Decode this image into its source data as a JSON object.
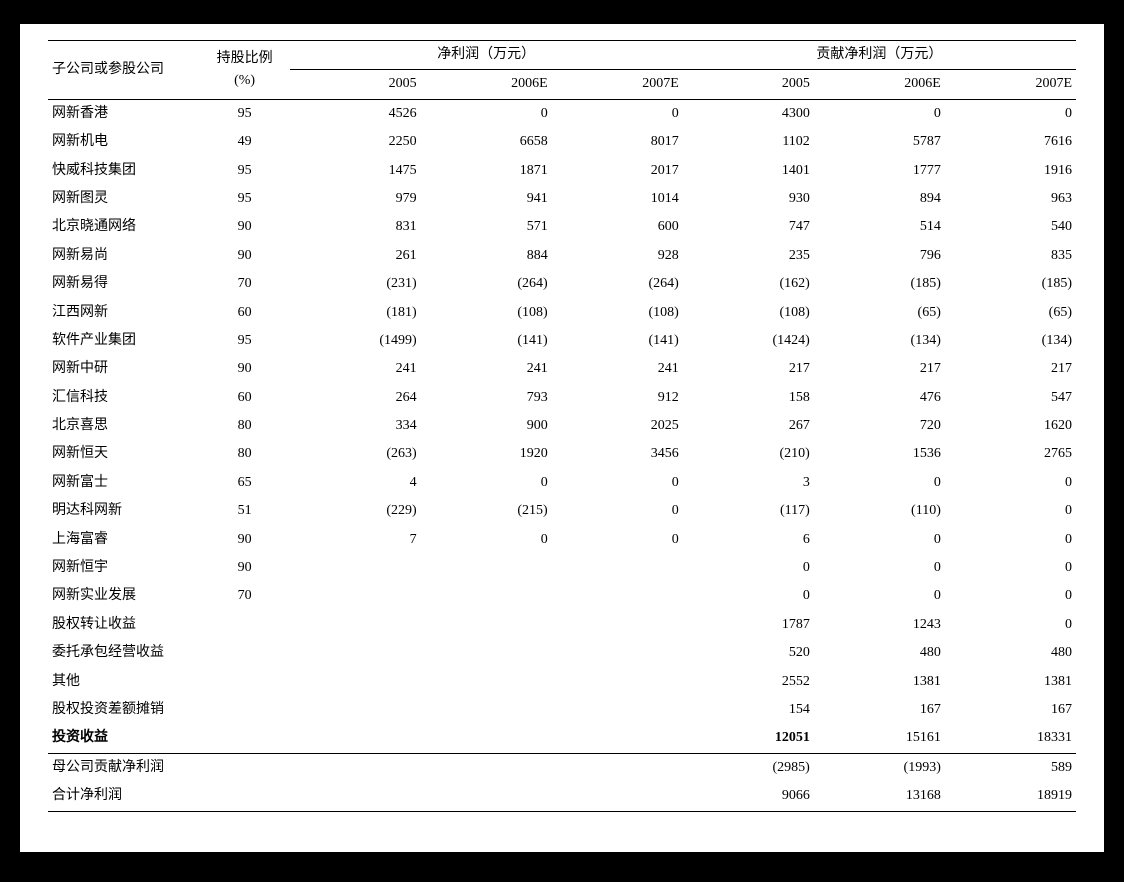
{
  "header": {
    "company_col": "子公司或参股公司",
    "share_col_line1": "持股比例",
    "share_col_line2": "(%)",
    "group1": "净利润（万元）",
    "group2": "贡献净利润（万元）",
    "sub_years": [
      "2005",
      "2006E",
      "2007E"
    ]
  },
  "rows": [
    {
      "name": "网新香港",
      "share": "95",
      "np": [
        "4526",
        "0",
        "0"
      ],
      "cnp": [
        "4300",
        "0",
        "0"
      ]
    },
    {
      "name": "网新机电",
      "share": "49",
      "np": [
        "2250",
        "6658",
        "8017"
      ],
      "cnp": [
        "1102",
        "5787",
        "7616"
      ]
    },
    {
      "name": "快威科技集团",
      "share": "95",
      "np": [
        "1475",
        "1871",
        "2017"
      ],
      "cnp": [
        "1401",
        "1777",
        "1916"
      ]
    },
    {
      "name": "网新图灵",
      "share": "95",
      "np": [
        "979",
        "941",
        "1014"
      ],
      "cnp": [
        "930",
        "894",
        "963"
      ]
    },
    {
      "name": "北京晓通网络",
      "share": "90",
      "np": [
        "831",
        "571",
        "600"
      ],
      "cnp": [
        "747",
        "514",
        "540"
      ]
    },
    {
      "name": "网新易尚",
      "share": "90",
      "np": [
        "261",
        "884",
        "928"
      ],
      "cnp": [
        "235",
        "796",
        "835"
      ]
    },
    {
      "name": "网新易得",
      "share": "70",
      "np": [
        "(231)",
        "(264)",
        "(264)"
      ],
      "cnp": [
        "(162)",
        "(185)",
        "(185)"
      ]
    },
    {
      "name": "江西网新",
      "share": "60",
      "np": [
        "(181)",
        "(108)",
        "(108)"
      ],
      "cnp": [
        "(108)",
        "(65)",
        "(65)"
      ]
    },
    {
      "name": "软件产业集团",
      "share": "95",
      "np": [
        "(1499)",
        "(141)",
        "(141)"
      ],
      "cnp": [
        "(1424)",
        "(134)",
        "(134)"
      ]
    },
    {
      "name": "网新中研",
      "share": "90",
      "np": [
        "241",
        "241",
        "241"
      ],
      "cnp": [
        "217",
        "217",
        "217"
      ]
    },
    {
      "name": "汇信科技",
      "share": "60",
      "np": [
        "264",
        "793",
        "912"
      ],
      "cnp": [
        "158",
        "476",
        "547"
      ]
    },
    {
      "name": "北京喜思",
      "share": "80",
      "np": [
        "334",
        "900",
        "2025"
      ],
      "cnp": [
        "267",
        "720",
        "1620"
      ]
    },
    {
      "name": "网新恒天",
      "share": "80",
      "np": [
        "(263)",
        "1920",
        "3456"
      ],
      "cnp": [
        "(210)",
        "1536",
        "2765"
      ]
    },
    {
      "name": "网新富士",
      "share": "65",
      "np": [
        "4",
        "0",
        "0"
      ],
      "cnp": [
        "3",
        "0",
        "0"
      ]
    },
    {
      "name": "明达科网新",
      "share": "51",
      "np": [
        "(229)",
        "(215)",
        "0"
      ],
      "cnp": [
        "(117)",
        "(110)",
        "0"
      ]
    },
    {
      "name": "上海富睿",
      "share": "90",
      "np": [
        "7",
        "0",
        "0"
      ],
      "cnp": [
        "6",
        "0",
        "0"
      ]
    },
    {
      "name": "网新恒宇",
      "share": "90",
      "np": [
        "",
        "",
        ""
      ],
      "cnp": [
        "0",
        "0",
        "0"
      ]
    },
    {
      "name": "网新实业发展",
      "share": "70",
      "np": [
        "",
        "",
        ""
      ],
      "cnp": [
        "0",
        "0",
        "0"
      ]
    },
    {
      "name": "股权转让收益",
      "share": "",
      "np": [
        "",
        "",
        ""
      ],
      "cnp": [
        "1787",
        "1243",
        "0"
      ]
    },
    {
      "name": "委托承包经营收益",
      "share": "",
      "np": [
        "",
        "",
        ""
      ],
      "cnp": [
        "520",
        "480",
        "480"
      ]
    },
    {
      "name": "其他",
      "share": "",
      "np": [
        "",
        "",
        ""
      ],
      "cnp": [
        "2552",
        "1381",
        "1381"
      ]
    },
    {
      "name": "股权投资差额摊销",
      "share": "",
      "np": [
        "",
        "",
        ""
      ],
      "cnp": [
        "154",
        "167",
        "167"
      ]
    }
  ],
  "investment_income": {
    "name": "投资收益",
    "cnp": [
      "12051",
      "15161",
      "18331"
    ]
  },
  "parent_contrib": {
    "name": "母公司贡献净利润",
    "cnp": [
      "(2985)",
      "(1993)",
      "589"
    ]
  },
  "total_profit": {
    "name": "合计净利润",
    "cnp": [
      "9066",
      "13168",
      "18919"
    ]
  }
}
